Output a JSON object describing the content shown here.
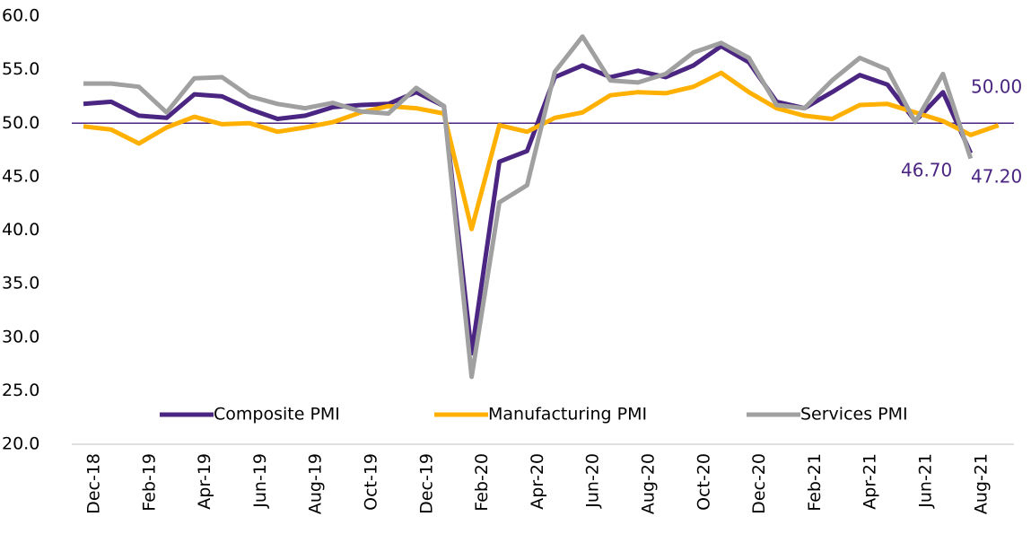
{
  "chart_data": {
    "type": "line",
    "categories": [
      "Dec-18",
      null,
      "Feb-19",
      null,
      "Apr-19",
      null,
      "Jun-19",
      null,
      "Aug-19",
      null,
      "Oct-19",
      null,
      "Dec-19",
      null,
      "Feb-20",
      null,
      "Apr-20",
      null,
      "Jun-20",
      null,
      "Aug-20",
      null,
      "Oct-20",
      null,
      "Dec-20",
      null,
      "Feb-21",
      null,
      "Apr-21",
      null,
      "Jun-21",
      null,
      "Aug-21",
      null
    ],
    "series": [
      {
        "name": "Composite PMI",
        "color": "#4b2582",
        "values": [
          51.8,
          52.0,
          50.7,
          50.5,
          52.7,
          52.5,
          51.3,
          50.4,
          50.7,
          51.5,
          51.7,
          51.8,
          52.9,
          51.6,
          28.5,
          46.4,
          47.4,
          54.3,
          55.4,
          54.3,
          54.9,
          54.3,
          55.4,
          57.2,
          55.7,
          52.0,
          51.4,
          52.9,
          54.5,
          53.6,
          50.2,
          52.9,
          47.2,
          null
        ]
      },
      {
        "name": "Manufacturing PMI",
        "color": "#ffb000",
        "values": [
          49.7,
          49.4,
          48.1,
          49.6,
          50.6,
          49.9,
          50.0,
          49.2,
          49.6,
          50.1,
          51.0,
          51.6,
          51.4,
          50.9,
          40.1,
          49.8,
          49.2,
          50.5,
          51.0,
          52.6,
          52.9,
          52.8,
          53.4,
          54.7,
          52.9,
          51.4,
          50.7,
          50.4,
          51.7,
          51.8,
          51.0,
          50.2,
          48.9,
          49.8
        ]
      },
      {
        "name": "Services PMI",
        "color": "#a0a0a0",
        "values": [
          53.7,
          53.7,
          53.4,
          51.0,
          54.2,
          54.3,
          52.5,
          51.8,
          51.4,
          51.9,
          51.1,
          50.9,
          53.3,
          51.6,
          26.3,
          42.6,
          44.2,
          54.8,
          58.1,
          54.0,
          53.8,
          54.6,
          56.6,
          57.5,
          56.1,
          51.7,
          51.4,
          54.0,
          56.1,
          55.0,
          50.1,
          54.6,
          46.7,
          null
        ]
      }
    ],
    "ylim": [
      20,
      60
    ],
    "yticks": [
      {
        "value": 20,
        "label": "20.0"
      },
      {
        "value": 25,
        "label": "25.0"
      },
      {
        "value": 30,
        "label": "30.0"
      },
      {
        "value": 35,
        "label": "35.0"
      },
      {
        "value": 40,
        "label": "40.0"
      },
      {
        "value": 45,
        "label": "45.0"
      },
      {
        "value": 50,
        "label": "50.0"
      },
      {
        "value": 55,
        "label": "55.0"
      },
      {
        "value": 60,
        "label": "60.0"
      }
    ],
    "hline": 50,
    "annotations": [
      "50.00",
      "46.70",
      "47.20"
    ],
    "legend": "bottom"
  }
}
